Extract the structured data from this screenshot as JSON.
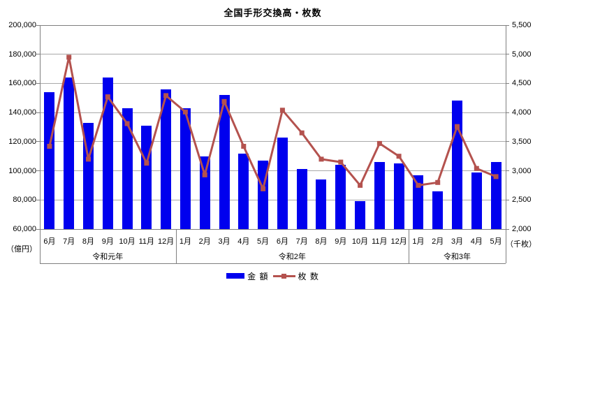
{
  "title": "全国手形交換高・枚数",
  "chart_data": {
    "type": "bar",
    "subtype": "bar+line combo, dual axis",
    "categories": [
      "6月",
      "7月",
      "8月",
      "9月",
      "10月",
      "11月",
      "12月",
      "1月",
      "2月",
      "3月",
      "4月",
      "5月",
      "6月",
      "7月",
      "8月",
      "9月",
      "10月",
      "11月",
      "12月",
      "1月",
      "2月",
      "3月",
      "4月",
      "5月"
    ],
    "year_groups": [
      {
        "label": "令和元年",
        "months": 7
      },
      {
        "label": "令和2年",
        "months": 12
      },
      {
        "label": "令和3年",
        "months": 5
      }
    ],
    "series": [
      {
        "name": "金 額",
        "type": "bar",
        "axis": "left",
        "color": "#0000EE",
        "values": [
          154000,
          164000,
          133000,
          164000,
          143000,
          131000,
          156000,
          143000,
          110000,
          152000,
          112000,
          107000,
          123000,
          101000,
          94000,
          104000,
          79000,
          106000,
          105000,
          97000,
          86000,
          148000,
          99000,
          106000
        ]
      },
      {
        "name": "枚 数",
        "type": "line",
        "axis": "right",
        "color": "#B4524E",
        "values": [
          3420,
          4950,
          3200,
          4270,
          3810,
          3130,
          4290,
          4010,
          2930,
          4190,
          3420,
          2690,
          4040,
          3650,
          3200,
          3150,
          2750,
          3470,
          3250,
          2750,
          2800,
          3760,
          3040,
          2900
        ]
      }
    ],
    "left_axis": {
      "label": "（億円）",
      "min": 60000,
      "max": 200000,
      "step": 20000
    },
    "right_axis": {
      "label": "（千枚）",
      "min": 2000,
      "max": 5500,
      "step": 500
    },
    "grid": true,
    "legend_position": "bottom",
    "style": {
      "grid_color": "#A9A9A9",
      "axis_color": "#7F7F7F",
      "text_color": "#000000",
      "background": "#FFFFFF"
    }
  }
}
